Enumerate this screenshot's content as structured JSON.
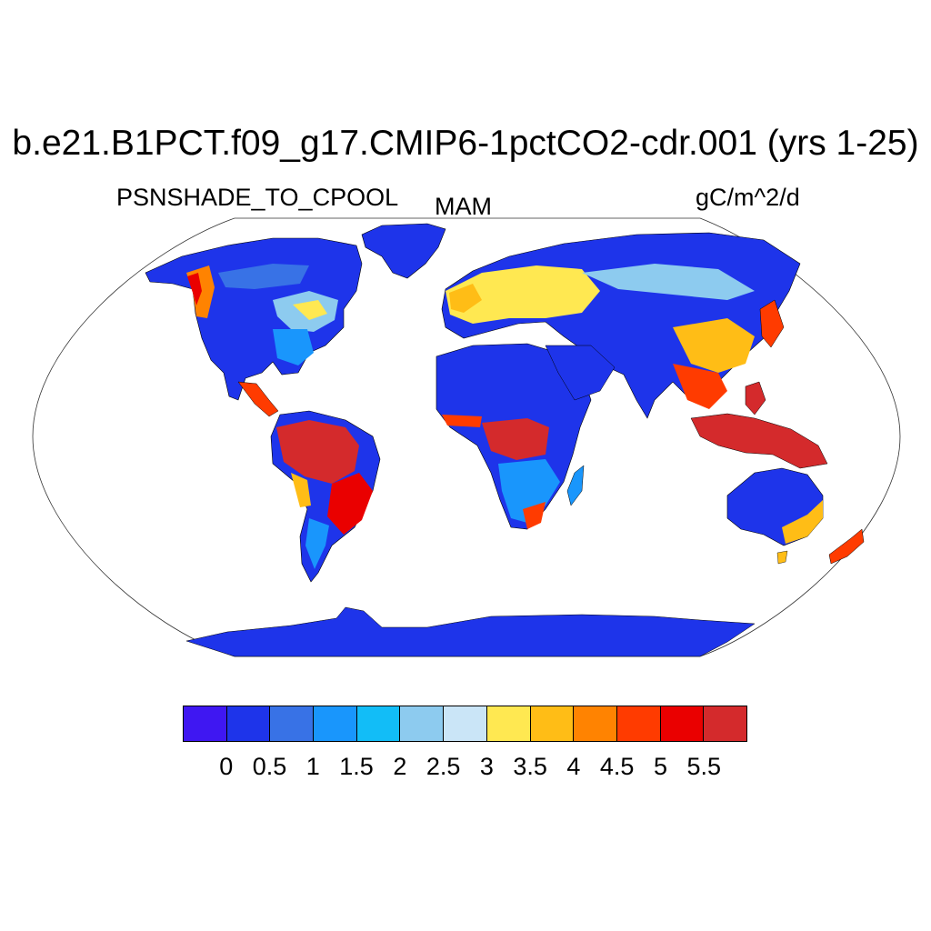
{
  "header": {
    "title": "b.e21.B1PCT.f09_g17.CMIP6-1pctCO2-cdr.001 (yrs 1-25)",
    "variable": "PSNSHADE_TO_CPOOL",
    "season": "MAM",
    "units": "gC/m^2/d"
  },
  "colorbar": {
    "colors": [
      "#3f17f2",
      "#1e34ea",
      "#3872e6",
      "#1996fc",
      "#12bdf7",
      "#8dcbef",
      "#cae5f7",
      "#ffe851",
      "#ffbd16",
      "#ff8301",
      "#ff3b00",
      "#ea0000",
      "#d42a2c"
    ],
    "labels": [
      "0",
      "0.5",
      "1",
      "1.5",
      "2",
      "2.5",
      "3",
      "3.5",
      "4",
      "4.5",
      "5",
      "5.5"
    ]
  },
  "map": {
    "projection": "Robinson",
    "ocean_color": "#ffffff",
    "coastline_color": "#000000"
  }
}
